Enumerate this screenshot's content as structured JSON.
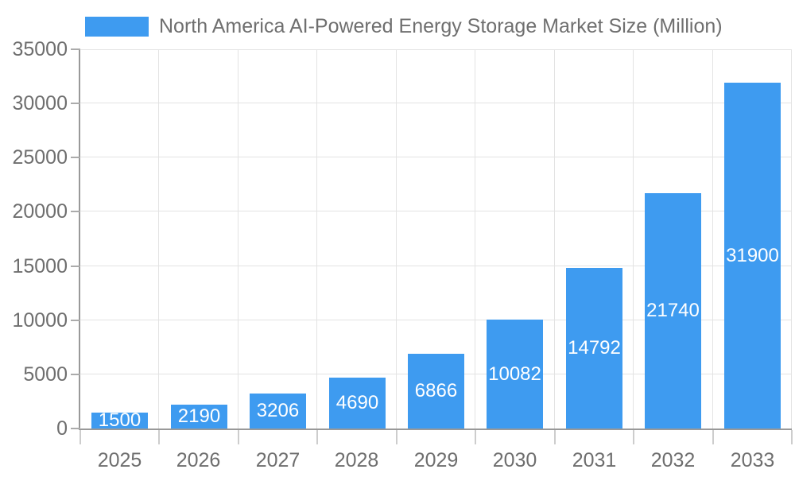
{
  "legend": {
    "label": "North America AI-Powered Energy Storage Market Size (Million)"
  },
  "chart_data": {
    "type": "bar",
    "title": "",
    "categories": [
      "2025",
      "2026",
      "2027",
      "2028",
      "2029",
      "2030",
      "2031",
      "2032",
      "2033"
    ],
    "series": [
      {
        "name": "North America AI-Powered Energy Storage Market Size (Million)",
        "values": [
          1500,
          2190,
          3206,
          4690,
          6866,
          10082,
          14792,
          21740,
          31900
        ]
      }
    ],
    "bar_value_labels": [
      "1500",
      "2190",
      "3206",
      "4690",
      "6866",
      "10082",
      "14792",
      "21740",
      "31900"
    ],
    "xlabel": "",
    "ylabel": "",
    "ylim": [
      0,
      35000
    ],
    "yticks": [
      0,
      5000,
      10000,
      15000,
      20000,
      25000,
      30000,
      35000
    ],
    "grid": true,
    "legend_position": "top-left",
    "colors": {
      "bar": "#3E9BF0",
      "bar_label": "#FFFFFF",
      "axis_line": "#999999",
      "gridline": "#E3E3E3",
      "tick_label": "#6E6E6E",
      "legend_text": "#6F6F6F",
      "background": "#FFFFFF"
    }
  }
}
